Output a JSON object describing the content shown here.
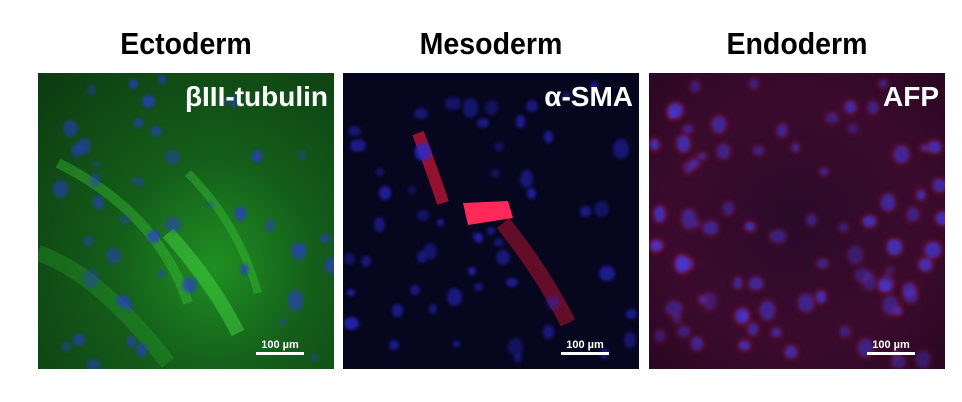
{
  "panels": [
    {
      "title": "Ectoderm",
      "marker": "βIII-tubulin",
      "scale_bar": "100 µm",
      "stain_color": "#2fbf2f",
      "nuclei_color": "#2a3cd0"
    },
    {
      "title": "Mesoderm",
      "marker": "α-SMA",
      "scale_bar": "100 µm",
      "stain_color": "#ff2040",
      "nuclei_color": "#2a2ad0"
    },
    {
      "title": "Endoderm",
      "marker": "AFP",
      "scale_bar": "100 µm",
      "stain_color": "#c01838",
      "nuclei_color": "#4a3ae0"
    }
  ]
}
